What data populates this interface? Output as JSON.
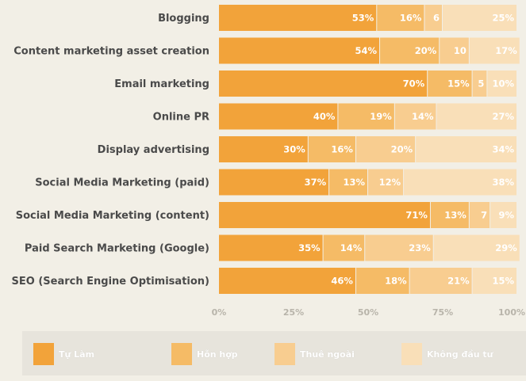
{
  "chart_data": {
    "type": "bar",
    "orientation": "horizontal",
    "stacked": true,
    "categories": [
      "Blogging",
      "Content marketing asset creation",
      "Email marketing",
      "Online PR",
      "Display advertising",
      "Social Media Marketing (paid)",
      "Social Media Marketing (content)",
      "Paid Search Marketing (Google)",
      "SEO (Search Engine Optimisation)"
    ],
    "series": [
      {
        "name": "Tự Làm",
        "color": "#f2a33a",
        "values": [
          53,
          54,
          70,
          40,
          30,
          37,
          71,
          35,
          46
        ],
        "labels": [
          "53%",
          "54%",
          "70%",
          "40%",
          "30%",
          "37%",
          "71%",
          "35%",
          "46%"
        ]
      },
      {
        "name": "Hỗn hợp",
        "color": "#f5bb66",
        "values": [
          16,
          20,
          15,
          19,
          16,
          13,
          13,
          14,
          18
        ],
        "labels": [
          "16%",
          "20%",
          "15%",
          "19%",
          "16%",
          "13%",
          "13%",
          "14%",
          "18%"
        ]
      },
      {
        "name": "Thuê ngoài",
        "color": "#f8cd90",
        "values": [
          6,
          10,
          5,
          14,
          20,
          12,
          7,
          23,
          21
        ],
        "labels": [
          "6",
          "10",
          "5",
          "14%",
          "20%",
          "12%",
          "7",
          "23%",
          "21%"
        ]
      },
      {
        "name": "Không đầu tư",
        "color": "#f9dfb8",
        "values": [
          25,
          17,
          10,
          27,
          34,
          38,
          9,
          29,
          15
        ],
        "labels": [
          "25%",
          "17%",
          "10%",
          "27%",
          "34%",
          "38%",
          "9%",
          "29%",
          "15%"
        ]
      }
    ],
    "xlim": [
      0,
      100
    ],
    "xticks": [
      "0%",
      "25%",
      "50%",
      "75%",
      "100%"
    ],
    "legend_position": "bottom"
  }
}
